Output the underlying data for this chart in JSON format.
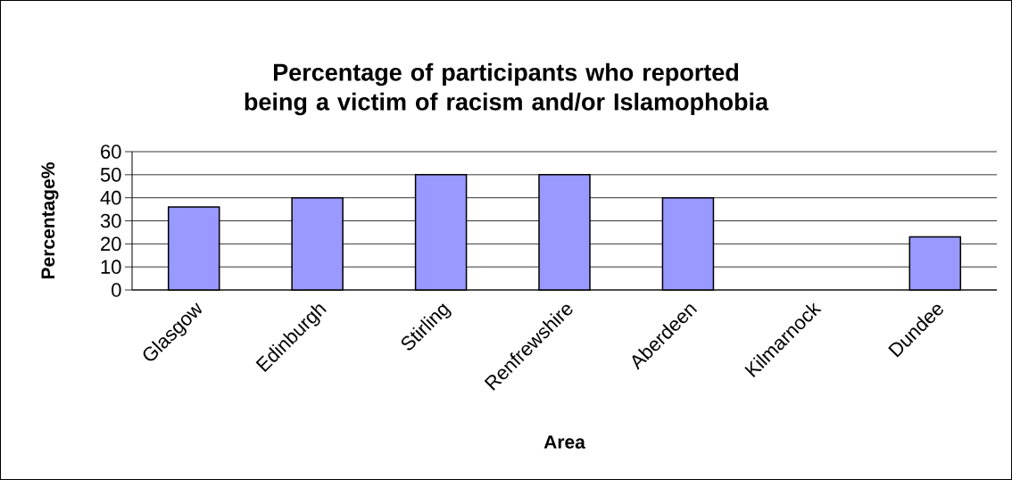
{
  "chart_data": {
    "type": "bar",
    "title": "Percentage of participants who reported being a victim of racism and/or Islamophobia",
    "xlabel": "Area",
    "ylabel": "Percentage%",
    "categories": [
      "Glasgow",
      "Edinburgh",
      "Stirling",
      "Renfrewshire",
      "Aberdeen",
      "Kilmarnock",
      "Dundee"
    ],
    "values": [
      36,
      40,
      50,
      50,
      40,
      0,
      23
    ],
    "color": "#9999ff",
    "ylim": [
      0,
      60
    ],
    "yticks": [
      0,
      10,
      20,
      30,
      40,
      50,
      60
    ],
    "grid": "y"
  }
}
